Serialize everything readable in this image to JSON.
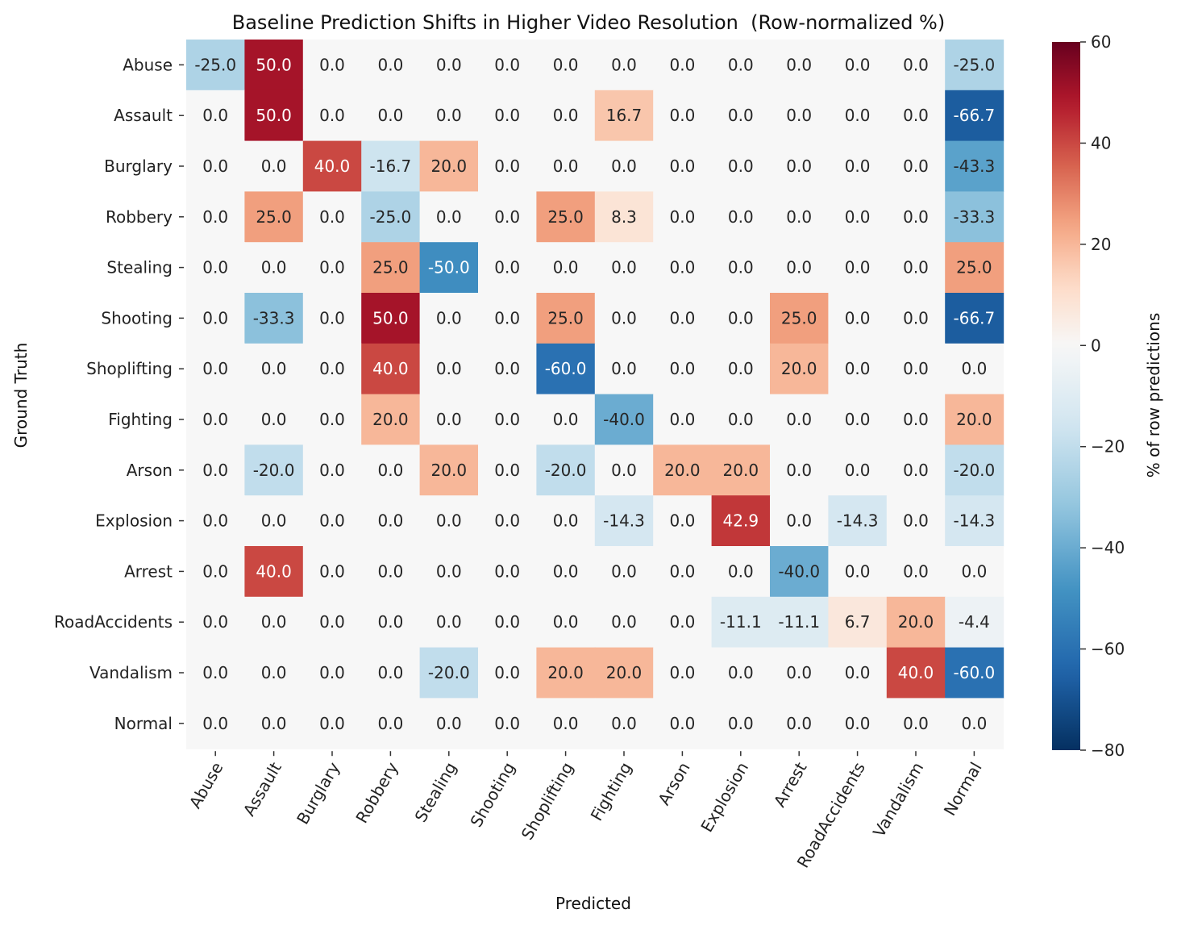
{
  "chart_data": {
    "type": "heatmap",
    "title": "Baseline Prediction Shifts in Higher Video Resolution  (Row-normalized %)",
    "xlabel": "Predicted",
    "ylabel": "Ground Truth",
    "row_labels": [
      "Abuse",
      "Assault",
      "Burglary",
      "Robbery",
      "Stealing",
      "Shooting",
      "Shoplifting",
      "Fighting",
      "Arson",
      "Explosion",
      "Arrest",
      "RoadAccidents",
      "Vandalism",
      "Normal"
    ],
    "col_labels": [
      "Abuse",
      "Assault",
      "Burglary",
      "Robbery",
      "Stealing",
      "Shooting",
      "Shoplifting",
      "Fighting",
      "Arson",
      "Explosion",
      "Arrest",
      "RoadAccidents",
      "Vandalism",
      "Normal"
    ],
    "values": [
      [
        -25.0,
        50.0,
        0.0,
        0.0,
        0.0,
        0.0,
        0.0,
        0.0,
        0.0,
        0.0,
        0.0,
        0.0,
        0.0,
        -25.0
      ],
      [
        0.0,
        50.0,
        0.0,
        0.0,
        0.0,
        0.0,
        0.0,
        16.7,
        0.0,
        0.0,
        0.0,
        0.0,
        0.0,
        -66.7
      ],
      [
        0.0,
        0.0,
        40.0,
        -16.7,
        20.0,
        0.0,
        0.0,
        0.0,
        0.0,
        0.0,
        0.0,
        0.0,
        0.0,
        -43.3
      ],
      [
        0.0,
        25.0,
        0.0,
        -25.0,
        0.0,
        0.0,
        25.0,
        8.3,
        0.0,
        0.0,
        0.0,
        0.0,
        0.0,
        -33.3
      ],
      [
        0.0,
        0.0,
        0.0,
        25.0,
        -50.0,
        0.0,
        0.0,
        0.0,
        0.0,
        0.0,
        0.0,
        0.0,
        0.0,
        25.0
      ],
      [
        0.0,
        -33.3,
        0.0,
        50.0,
        0.0,
        0.0,
        25.0,
        0.0,
        0.0,
        0.0,
        25.0,
        0.0,
        0.0,
        -66.7
      ],
      [
        0.0,
        0.0,
        0.0,
        40.0,
        0.0,
        0.0,
        -60.0,
        0.0,
        0.0,
        0.0,
        20.0,
        0.0,
        0.0,
        0.0
      ],
      [
        0.0,
        0.0,
        0.0,
        20.0,
        0.0,
        0.0,
        0.0,
        -40.0,
        0.0,
        0.0,
        0.0,
        0.0,
        0.0,
        20.0
      ],
      [
        0.0,
        -20.0,
        0.0,
        0.0,
        20.0,
        0.0,
        -20.0,
        0.0,
        20.0,
        20.0,
        0.0,
        0.0,
        0.0,
        -20.0
      ],
      [
        0.0,
        0.0,
        0.0,
        0.0,
        0.0,
        0.0,
        0.0,
        -14.3,
        0.0,
        42.9,
        0.0,
        -14.3,
        0.0,
        -14.3
      ],
      [
        0.0,
        40.0,
        0.0,
        0.0,
        0.0,
        0.0,
        0.0,
        0.0,
        0.0,
        0.0,
        -40.0,
        0.0,
        0.0,
        0.0
      ],
      [
        0.0,
        0.0,
        0.0,
        0.0,
        0.0,
        0.0,
        0.0,
        0.0,
        0.0,
        -11.1,
        -11.1,
        6.7,
        20.0,
        -4.4
      ],
      [
        0.0,
        0.0,
        0.0,
        0.0,
        -20.0,
        0.0,
        20.0,
        20.0,
        0.0,
        0.0,
        0.0,
        0.0,
        40.0,
        -60.0
      ],
      [
        0.0,
        0.0,
        0.0,
        0.0,
        0.0,
        0.0,
        0.0,
        0.0,
        0.0,
        0.0,
        0.0,
        0.0,
        0.0,
        0.0
      ]
    ],
    "value_format": "0.0",
    "colormap": "RdBu_r",
    "colormap_stops": [
      "#053061",
      "#2166ac",
      "#4393c3",
      "#92c5de",
      "#d1e5f0",
      "#f7f7f7",
      "#fddbc7",
      "#f4a582",
      "#d6604d",
      "#b2182b",
      "#67001f"
    ],
    "color_center": 0,
    "vlim": [
      -80,
      60
    ],
    "colorbar": {
      "label": "% of row predictions",
      "ticks": [
        60,
        40,
        20,
        0,
        -20,
        -40,
        -60,
        -80
      ],
      "tick_labels": [
        "60",
        "40",
        "20",
        "0",
        "−20",
        "−40",
        "−60",
        "−80"
      ]
    },
    "text_colors": {
      "dark": "#262626",
      "light": "#ffffff"
    }
  }
}
